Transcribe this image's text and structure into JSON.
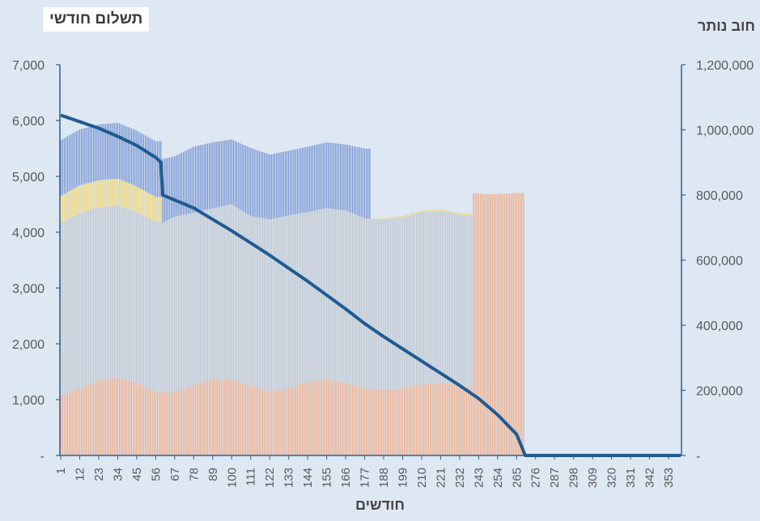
{
  "chart_data": {
    "type": "bar",
    "title": "תשלום חודשי",
    "y2label": "חוב נותר",
    "xlabel": "חודשים",
    "x_tick_labels": [
      "1",
      "12",
      "23",
      "34",
      "45",
      "56",
      "67",
      "78",
      "89",
      "100",
      "111",
      "122",
      "133",
      "144",
      "155",
      "166",
      "177",
      "188",
      "199",
      "210",
      "221",
      "232",
      "243",
      "254",
      "265",
      "276",
      "287",
      "298",
      "309",
      "320",
      "331",
      "342",
      "353"
    ],
    "months": 360,
    "ylim": [
      0,
      7000
    ],
    "y_ticks": [
      "-",
      "1,000",
      "2,000",
      "3,000",
      "4,000",
      "5,000",
      "6,000",
      "7,000"
    ],
    "y2lim": [
      0,
      1200000
    ],
    "y2_ticks": [
      "-",
      "200,000",
      "400,000",
      "600,000",
      "800,000",
      "1,000,000",
      "1,200,000"
    ],
    "stack_series": [
      {
        "color": "#f0a983",
        "points": [
          [
            1,
            1070
          ],
          [
            12,
            1200
          ],
          [
            23,
            1340
          ],
          [
            34,
            1400
          ],
          [
            45,
            1300
          ],
          [
            56,
            1130
          ],
          [
            67,
            1130
          ],
          [
            78,
            1260
          ],
          [
            89,
            1370
          ],
          [
            100,
            1360
          ],
          [
            111,
            1250
          ],
          [
            122,
            1150
          ],
          [
            133,
            1200
          ],
          [
            144,
            1320
          ],
          [
            155,
            1360
          ],
          [
            166,
            1300
          ],
          [
            177,
            1200
          ],
          [
            188,
            1170
          ],
          [
            199,
            1200
          ],
          [
            210,
            1280
          ],
          [
            221,
            1300
          ],
          [
            232,
            1250
          ],
          [
            239,
            1230
          ],
          [
            240,
            4700
          ],
          [
            249,
            4680
          ],
          [
            265,
            4700
          ],
          [
            269,
            4700
          ],
          [
            270,
            0
          ],
          [
            360,
            0
          ]
        ]
      },
      {
        "color": "#bdc3cc",
        "points": [
          [
            1,
            3100
          ],
          [
            12,
            3140
          ],
          [
            23,
            3100
          ],
          [
            34,
            3080
          ],
          [
            45,
            3060
          ],
          [
            56,
            3050
          ],
          [
            59,
            3050
          ],
          [
            60,
            3040
          ],
          [
            67,
            3150
          ],
          [
            78,
            3090
          ],
          [
            89,
            3060
          ],
          [
            100,
            3140
          ],
          [
            111,
            3040
          ],
          [
            122,
            3080
          ],
          [
            133,
            3100
          ],
          [
            144,
            3040
          ],
          [
            155,
            3070
          ],
          [
            166,
            3090
          ],
          [
            177,
            3050
          ],
          [
            188,
            3060
          ],
          [
            199,
            3070
          ],
          [
            210,
            3080
          ],
          [
            221,
            3080
          ],
          [
            232,
            3060
          ],
          [
            239,
            3070
          ],
          [
            240,
            0
          ],
          [
            360,
            0
          ]
        ]
      },
      {
        "color": "#f3d66a",
        "points": [
          [
            1,
            480
          ],
          [
            12,
            500
          ],
          [
            23,
            490
          ],
          [
            34,
            480
          ],
          [
            45,
            460
          ],
          [
            56,
            450
          ],
          [
            59,
            450
          ],
          [
            60,
            0
          ],
          [
            180,
            0
          ],
          [
            188,
            20
          ],
          [
            221,
            30
          ],
          [
            239,
            30
          ],
          [
            240,
            0
          ],
          [
            360,
            0
          ]
        ]
      },
      {
        "color": "#6f8fd0",
        "points": [
          [
            1,
            1000
          ],
          [
            12,
            1000
          ],
          [
            23,
            1000
          ],
          [
            34,
            1000
          ],
          [
            45,
            1000
          ],
          [
            56,
            1000
          ],
          [
            59,
            1000
          ],
          [
            60,
            1140
          ],
          [
            67,
            1080
          ],
          [
            78,
            1180
          ],
          [
            89,
            1180
          ],
          [
            100,
            1160
          ],
          [
            111,
            1220
          ],
          [
            122,
            1160
          ],
          [
            133,
            1160
          ],
          [
            144,
            1170
          ],
          [
            155,
            1180
          ],
          [
            166,
            1180
          ],
          [
            177,
            1250
          ],
          [
            180,
            1250
          ],
          [
            181,
            0
          ],
          [
            360,
            0
          ]
        ]
      }
    ],
    "remaining_debt_line": {
      "color": "#1f5b92",
      "points": [
        [
          1,
          1045000
        ],
        [
          12,
          1025000
        ],
        [
          23,
          1005000
        ],
        [
          34,
          980000
        ],
        [
          45,
          952000
        ],
        [
          56,
          915000
        ],
        [
          59,
          900000
        ],
        [
          60,
          800000
        ],
        [
          78,
          760000
        ],
        [
          100,
          690000
        ],
        [
          122,
          615000
        ],
        [
          144,
          535000
        ],
        [
          166,
          450000
        ],
        [
          177,
          405000
        ],
        [
          188,
          365000
        ],
        [
          210,
          290000
        ],
        [
          232,
          215000
        ],
        [
          243,
          175000
        ],
        [
          254,
          125000
        ],
        [
          265,
          65000
        ],
        [
          270,
          0
        ],
        [
          360,
          0
        ]
      ]
    }
  }
}
